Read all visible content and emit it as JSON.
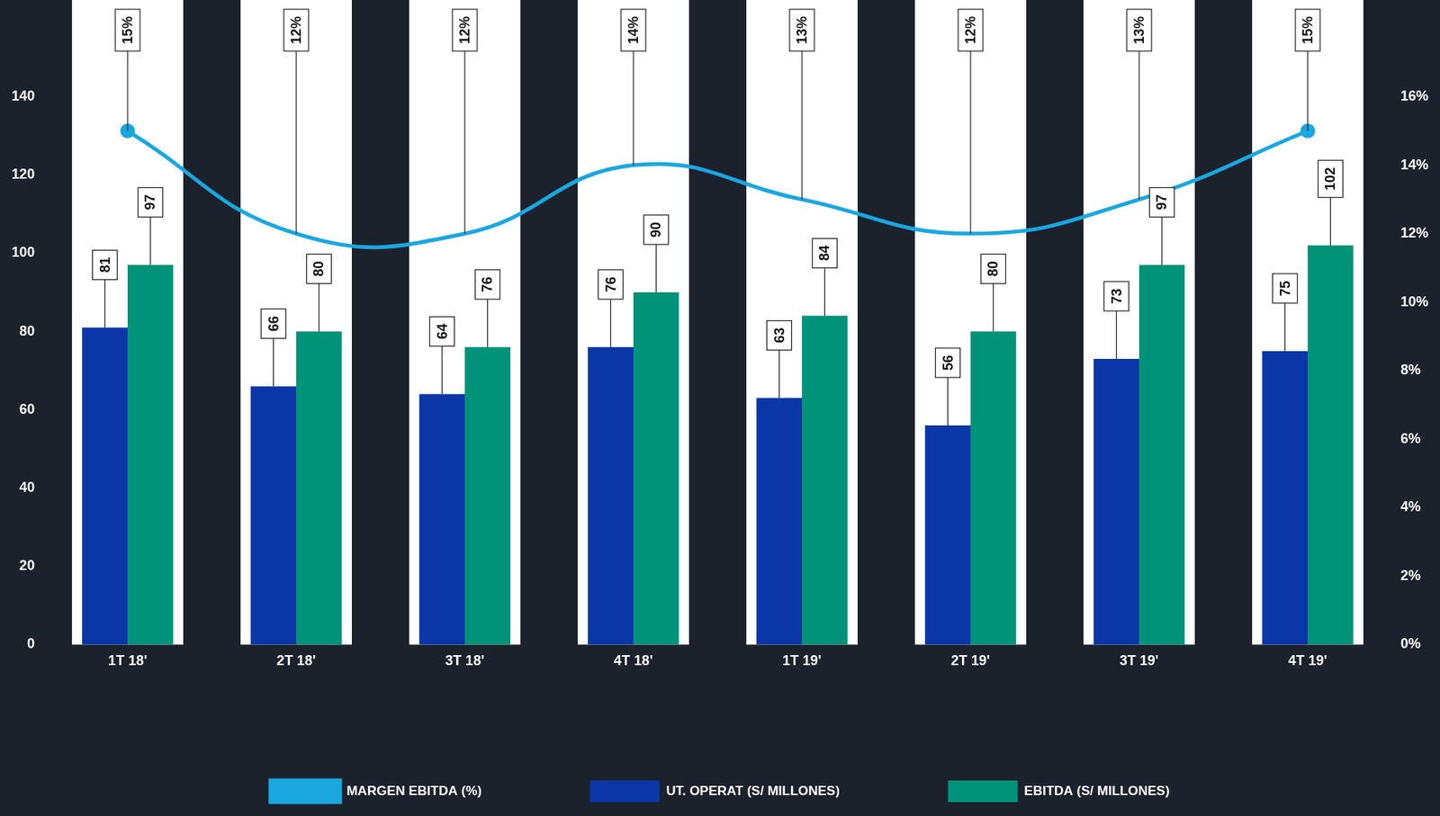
{
  "chart_data": {
    "type": "bar",
    "categories": [
      "1T 18'",
      "2T 18'",
      "3T 18'",
      "4T 18'",
      "1T 19'",
      "2T 19'",
      "3T 19'",
      "4T 19'"
    ],
    "series": [
      {
        "name": "UT. OPERAT (S/ MILLONES)",
        "type": "bar",
        "color": "#0b36a8",
        "values": [
          81,
          66,
          64,
          76,
          63,
          56,
          73,
          75
        ]
      },
      {
        "name": "EBITDA (S/ MILLONES)",
        "type": "bar",
        "color": "#00937a",
        "values": [
          97,
          80,
          76,
          90,
          84,
          80,
          97,
          102
        ]
      },
      {
        "name": "MARGEN EBITDA (%)",
        "type": "line",
        "axis": "y2",
        "color": "#1aa7e0",
        "values": [
          15,
          12,
          12,
          14,
          13,
          12,
          13,
          15
        ],
        "value_labels": [
          "15%",
          "12%",
          "12%",
          "14%",
          "13%",
          "12%",
          "13%",
          "15%"
        ]
      }
    ],
    "ylim": [
      0,
      140
    ],
    "yticks": [
      0,
      20,
      40,
      60,
      80,
      100,
      120,
      140
    ],
    "y2lim": [
      0,
      16
    ],
    "y2ticks": [
      {
        "value": 0,
        "label": "0%"
      },
      {
        "value": 2,
        "label": "2%"
      },
      {
        "value": 4,
        "label": "4%"
      },
      {
        "value": 6,
        "label": "6%"
      },
      {
        "value": 8,
        "label": "8%"
      },
      {
        "value": 10,
        "label": "10%"
      },
      {
        "value": 12,
        "label": "12%"
      },
      {
        "value": 14,
        "label": "14%"
      },
      {
        "value": 16,
        "label": "16%"
      }
    ],
    "data_labels": true,
    "legend": "bottom",
    "grid": false
  }
}
